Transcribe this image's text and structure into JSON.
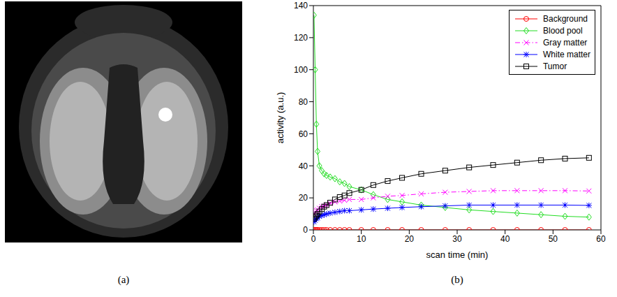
{
  "panel_labels": [
    "(a)",
    "(b)"
  ],
  "chart_data": {
    "type": "line",
    "x_label": "scan time (min)",
    "y_label": "activity (a.u.)",
    "x": [
      0.125,
      0.375,
      0.625,
      0.875,
      1.25,
      1.75,
      2.25,
      2.75,
      3.5,
      4.5,
      5.5,
      6.5,
      7.5,
      10,
      12.5,
      15.5,
      18.5,
      22.5,
      27.5,
      32.5,
      37.5,
      42.5,
      47.5,
      52.5,
      57.5
    ],
    "series": [
      {
        "name": "Background",
        "color": "#ff0000",
        "marker": "circle",
        "line_style": "solid",
        "values": [
          0,
          0,
          0,
          0,
          0,
          0,
          0,
          0,
          0,
          0,
          0,
          0,
          0,
          0,
          0,
          0,
          0,
          0,
          0,
          0,
          0,
          0,
          0,
          0,
          0
        ]
      },
      {
        "name": "Blood pool",
        "color": "#22dd22",
        "marker": "diamond",
        "line_style": "solid",
        "values": [
          134,
          100,
          66,
          49,
          40,
          37,
          35,
          34,
          33,
          32,
          30,
          29,
          27,
          25,
          22,
          19,
          17.5,
          15.5,
          14,
          12.5,
          11.5,
          10.5,
          9.5,
          8.5,
          8
        ]
      },
      {
        "name": "Gray matter",
        "color": "#ff00ff",
        "marker": "x",
        "line_style": "dashdot",
        "values": [
          10,
          11,
          12,
          12.5,
          13.5,
          14.5,
          15,
          15.5,
          16.5,
          17.5,
          18,
          18.5,
          19,
          19,
          20,
          21,
          21.5,
          22.5,
          23.5,
          24,
          24.5,
          24.5,
          24.5,
          24.5,
          24.3
        ]
      },
      {
        "name": "White matter",
        "color": "#0000ff",
        "marker": "star",
        "line_style": "solid",
        "values": [
          5,
          6,
          7,
          7.5,
          8.5,
          9,
          9.5,
          10,
          10.5,
          11,
          11.5,
          12,
          12,
          12.5,
          13,
          13.5,
          14,
          14.5,
          15,
          15.5,
          15.5,
          15.5,
          15.5,
          15.5,
          15.3
        ]
      },
      {
        "name": "Tumor",
        "color": "#000000",
        "marker": "square",
        "line_style": "solid",
        "values": [
          7,
          8,
          9,
          10,
          11.5,
          13,
          14.5,
          15.5,
          17,
          19,
          20.5,
          21.5,
          23,
          25,
          28,
          30.5,
          32.5,
          35,
          37,
          39,
          40.5,
          42,
          43.5,
          44.5,
          45
        ]
      }
    ],
    "xlim": [
      0,
      60
    ],
    "xticks": [
      0,
      10,
      20,
      30,
      40,
      50,
      60
    ],
    "ylim": [
      0,
      140
    ],
    "yticks": [
      0,
      20,
      40,
      60,
      80,
      100,
      120,
      140
    ],
    "grid": false,
    "legend": "top right"
  }
}
